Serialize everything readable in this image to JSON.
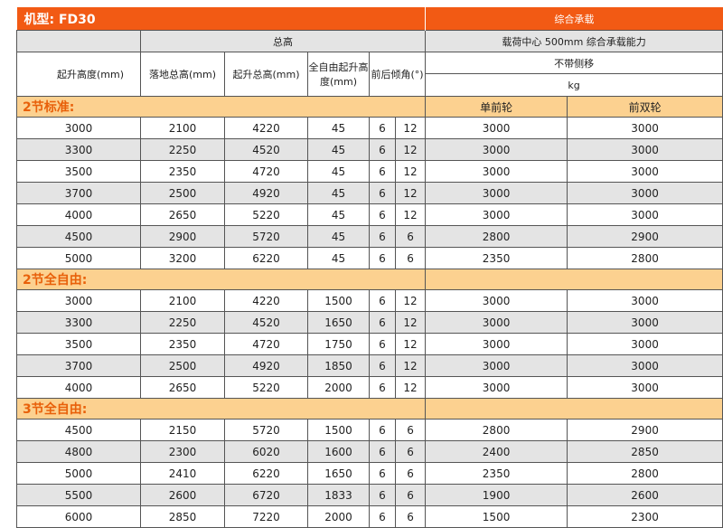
{
  "title": "机型: FD30",
  "load_header": "综合承载",
  "total_height": "总高",
  "load_center": "载荷中心  500mm  综合承载能力",
  "no_side_shift": "不带侧移",
  "unit": "kg",
  "columns": [
    "起升高度(mm)",
    "落地总高(mm)",
    "起升总高(mm)",
    "全自由起升高度(mm)",
    "前后倾角(°)"
  ],
  "single_front": "单前轮",
  "dual_front": "前双轮",
  "accent_color": "#f25a14",
  "section_color": "#fcd190",
  "sections": [
    {
      "title": "2节标准:",
      "rows": [
        [
          "3000",
          "2100",
          "4220",
          "45",
          "6",
          "12",
          "3000",
          "3000"
        ],
        [
          "3300",
          "2250",
          "4520",
          "45",
          "6",
          "12",
          "3000",
          "3000"
        ],
        [
          "3500",
          "2350",
          "4720",
          "45",
          "6",
          "12",
          "3000",
          "3000"
        ],
        [
          "3700",
          "2500",
          "4920",
          "45",
          "6",
          "12",
          "3000",
          "3000"
        ],
        [
          "4000",
          "2650",
          "5220",
          "45",
          "6",
          "12",
          "3000",
          "3000"
        ],
        [
          "4500",
          "2900",
          "5720",
          "45",
          "6",
          "6",
          "2800",
          "2900"
        ],
        [
          "5000",
          "3200",
          "6220",
          "45",
          "6",
          "6",
          "2350",
          "2800"
        ]
      ]
    },
    {
      "title": "2节全自由:",
      "rows": [
        [
          "3000",
          "2100",
          "4220",
          "1500",
          "6",
          "12",
          "3000",
          "3000"
        ],
        [
          "3300",
          "2250",
          "4520",
          "1650",
          "6",
          "12",
          "3000",
          "3000"
        ],
        [
          "3500",
          "2350",
          "4720",
          "1750",
          "6",
          "12",
          "3000",
          "3000"
        ],
        [
          "3700",
          "2500",
          "4920",
          "1850",
          "6",
          "12",
          "3000",
          "3000"
        ],
        [
          "4000",
          "2650",
          "5220",
          "2000",
          "6",
          "12",
          "3000",
          "3000"
        ]
      ]
    },
    {
      "title": "3节全自由:",
      "rows": [
        [
          "4500",
          "2150",
          "5720",
          "1500",
          "6",
          "6",
          "2800",
          "2900"
        ],
        [
          "4800",
          "2300",
          "6020",
          "1600",
          "6",
          "6",
          "2400",
          "2850"
        ],
        [
          "5000",
          "2410",
          "6220",
          "1650",
          "6",
          "6",
          "2350",
          "2800"
        ],
        [
          "5500",
          "2600",
          "6720",
          "1833",
          "6",
          "6",
          "1900",
          "2600"
        ],
        [
          "6000",
          "2850",
          "7220",
          "2000",
          "6",
          "6",
          "1500",
          "2300"
        ]
      ]
    }
  ]
}
